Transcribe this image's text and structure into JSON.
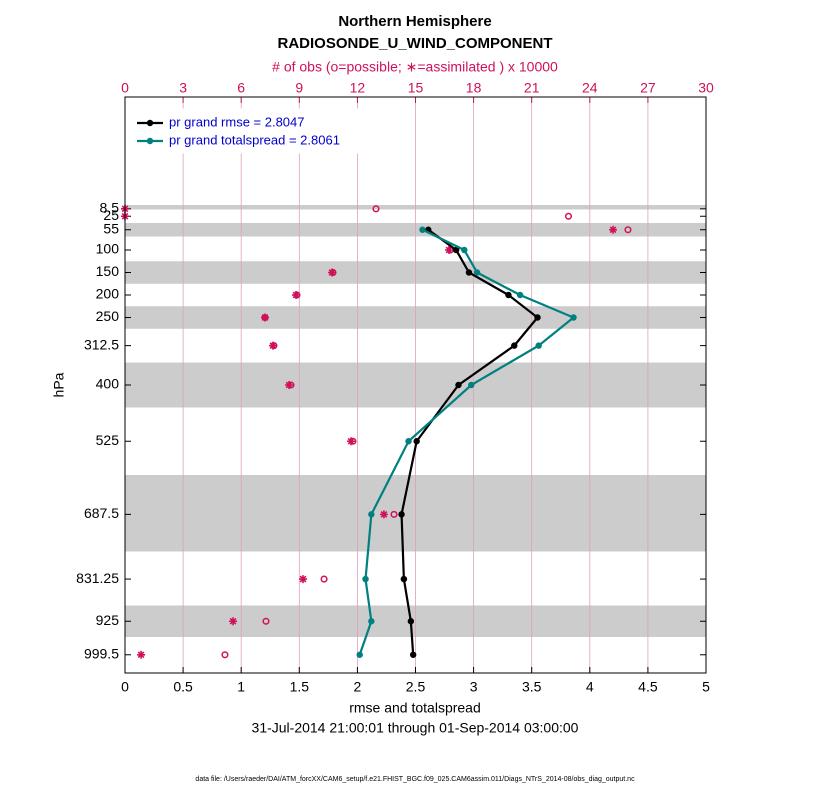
{
  "chart_data": {
    "type": "line",
    "title": "Northern Hemisphere",
    "subtitle": "RADIOSONDE_U_WIND_COMPONENT",
    "x2label": "# of obs (o=possible; ∗=assimilated ) x 10000",
    "xlabel": "rmse and totalspread",
    "ylabel": "hPa",
    "date_range": "31-Jul-2014 21:00:01 through 01-Sep-2014 03:00:00",
    "footnote": "data file: /Users/raeder/DAI/ATM_forcXX/CAM6_setup/f.e21.FHIST_BGC.f09_025.CAM6assim.011/Diags_NTrS_2014-08/obs_diag_output.nc",
    "levels": [
      8.5,
      25,
      55,
      100,
      150,
      200,
      250,
      312.5,
      400,
      525,
      687.5,
      831.25,
      925,
      999.5
    ],
    "xlim": [
      0,
      5
    ],
    "xticks": [
      0,
      0.5,
      1,
      1.5,
      2,
      2.5,
      3,
      3.5,
      4,
      4.5,
      5
    ],
    "x2lim": [
      0,
      30
    ],
    "x2ticks": [
      0,
      3,
      6,
      9,
      12,
      15,
      18,
      21,
      24,
      27,
      30
    ],
    "ylim": [
      1040,
      -240
    ],
    "yticks": [
      8.5,
      25,
      55,
      100,
      150,
      200,
      250,
      312.5,
      400,
      525,
      687.5,
      831.25,
      925,
      999.5
    ],
    "bands": [
      [
        0,
        10
      ],
      [
        40,
        70
      ],
      [
        125,
        175
      ],
      [
        225,
        275
      ],
      [
        350,
        450
      ],
      [
        600,
        770
      ],
      [
        890,
        960
      ]
    ],
    "band_color": "#cccccc",
    "grid_color": "#e0a0b8",
    "legend": "upper left",
    "series": [
      {
        "name": "pr grand rmse = 2.8047",
        "color": "#000000",
        "values": [
          null,
          null,
          2.61,
          2.85,
          2.96,
          3.3,
          3.55,
          3.35,
          2.87,
          2.51,
          2.38,
          2.4,
          2.46,
          2.48
        ]
      },
      {
        "name": "pr grand totalspread = 2.8061",
        "color": "#008080",
        "values": [
          null,
          null,
          2.56,
          2.92,
          3.03,
          3.4,
          3.86,
          3.56,
          2.98,
          2.44,
          2.12,
          2.07,
          2.12,
          2.02
        ]
      }
    ],
    "obs": {
      "color": "#d0105a",
      "axis": "x2",
      "possible": [
        12.96,
        22.9,
        25.97,
        16.8,
        10.74,
        8.88,
        7.23,
        7.69,
        8.57,
        11.77,
        13.89,
        10.28,
        7.28,
        5.16
      ],
      "assimilated": [
        0,
        0,
        25.2,
        16.73,
        10.69,
        8.83,
        7.23,
        7.64,
        8.47,
        11.67,
        13.37,
        9.19,
        5.58,
        0.83
      ]
    }
  }
}
